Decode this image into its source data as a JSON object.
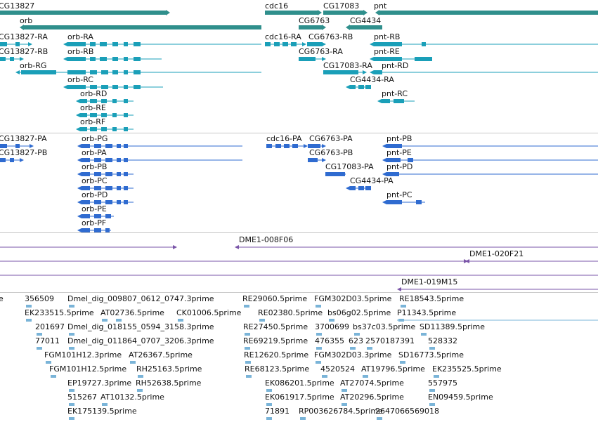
{
  "colors": {
    "gene": "#2f8f8c",
    "rna": "#1a9fb8",
    "protein": "#2f6bd0",
    "clone": "#7a55a8",
    "est": "#7ab4d8"
  },
  "gene_track": {
    "labels": [
      "CG13827",
      "orb",
      "cdc16",
      "CG6763",
      "CG17083",
      "CG4434",
      "pnt"
    ]
  },
  "rna_track": {
    "labels": [
      "CG13827-RA",
      "CG13827-RB",
      "orb-RA",
      "orb-RB",
      "orb-RG",
      "orb-RC",
      "orb-RD",
      "orb-RE",
      "orb-RF",
      "cdc16-RA",
      "CG6763-RB",
      "CG6763-RA",
      "CG17083-RA",
      "CG4434-RA",
      "pnt-RB",
      "pnt-RE",
      "pnt-RD",
      "pnt-RC"
    ]
  },
  "protein_track": {
    "labels": [
      "CG13827-PA",
      "CG13827-PB",
      "orb-PG",
      "orb-PA",
      "orb-PB",
      "orb-PC",
      "orb-PD",
      "orb-PE",
      "orb-PF",
      "cdc16-PA",
      "CG6763-PA",
      "CG6763-PB",
      "CG17083-PA",
      "CG4434-PA",
      "pnt-PB",
      "pnt-PE",
      "pnt-PD",
      "pnt-PC"
    ]
  },
  "clone_track": {
    "labels": [
      "DME1-008F06",
      "DME1-020F21",
      "DME1-019M15"
    ]
  },
  "est_track": {
    "labels": [
      "e",
      "356509",
      "Dmel_dig_009807_0612_0747.3prime",
      "RE29060.5prime",
      "FGM302D03.5prime",
      "RE18543.5prime",
      "EK233515.5prime",
      "AT02736.5prime",
      "CK01006.5prime",
      "RE02380.5prime",
      "bs06g02.5prime",
      "P11343.5prime",
      "201697",
      "Dmel_dig_018155_0594_3158.3prime",
      "RE27450.5prime",
      "3700699",
      "bs37c03.5prime",
      "SD11389.5prime",
      "77011",
      "Dmel_dig_011864_0707_3206.3prime",
      "RE69219.5prime",
      "476355",
      "623",
      "2570187391",
      "528332",
      "FGM101H12.3prime",
      "AT26367.5prime",
      "RE12620.5prime",
      "FGM302D03.3prime",
      "SD16773.5prime",
      "FGM101H12.5prime",
      "RH25163.5prime",
      "RE68123.5prime",
      "4520524",
      "AT19796.5prime",
      "EK235525.5prime",
      "EP19727.3prime",
      "RH52638.5prime",
      "EK086201.5prime",
      "AT27074.5prime",
      "557975",
      "515267",
      "AT10132.5prime",
      "EK061917.5prime",
      "AT20296.5prime",
      "EN09459.5prime",
      "EK175139.5prime",
      "71891",
      "RP003626784.5prime",
      "2647066569018"
    ]
  }
}
